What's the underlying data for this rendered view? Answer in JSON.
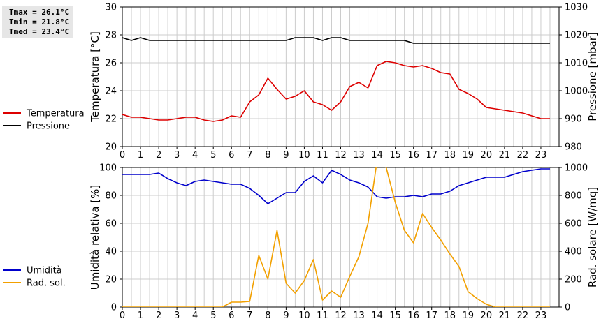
{
  "stats": {
    "tmax": "Tmax = 26.1°C",
    "tmin": "Tmin = 21.8°C",
    "tmed": "Tmed = 23.4°C"
  },
  "colors": {
    "temperature": "#dd0000",
    "pressure": "#000000",
    "humidity": "#0000cc",
    "solar": "#f2a000",
    "grid": "#cccccc"
  },
  "chart_data": [
    {
      "type": "line",
      "title": "",
      "legend_position": "left",
      "grid": true,
      "x": [
        0,
        0.5,
        1,
        1.5,
        2,
        2.5,
        3,
        3.5,
        4,
        4.5,
        5,
        5.5,
        6,
        6.5,
        7,
        7.5,
        8,
        8.5,
        9,
        9.5,
        10,
        10.5,
        11,
        11.5,
        12,
        12.5,
        13,
        13.5,
        14,
        14.5,
        15,
        15.5,
        16,
        16.5,
        17,
        17.5,
        18,
        18.5,
        19,
        19.5,
        20,
        20.5,
        21,
        21.5,
        22,
        22.5,
        23,
        23.5
      ],
      "x_ticks": [
        "0",
        "1",
        "2",
        "3",
        "4",
        "5",
        "6",
        "7",
        "8",
        "9",
        "10",
        "11",
        "12",
        "13",
        "14",
        "15",
        "16",
        "17",
        "18",
        "19",
        "20",
        "21",
        "22",
        "23"
      ],
      "xlim": [
        0,
        24
      ],
      "ylabel_left": "Temperatura [°C]",
      "ylim_left": [
        20,
        30
      ],
      "yticks_left": [
        "20",
        "22",
        "24",
        "26",
        "28",
        "30"
      ],
      "ylabel_right": "Pressione [mbar]",
      "ylim_right": [
        980,
        1030
      ],
      "yticks_right": [
        "980",
        "990",
        "1000",
        "1010",
        "1020",
        "1030"
      ],
      "series": [
        {
          "name": "Temperatura",
          "axis": "left",
          "values": [
            22.3,
            22.1,
            22.1,
            22.0,
            21.9,
            21.9,
            22.0,
            22.1,
            22.1,
            21.9,
            21.8,
            21.9,
            22.2,
            22.1,
            23.2,
            23.7,
            24.9,
            24.1,
            23.4,
            23.6,
            24.0,
            23.2,
            23.0,
            22.6,
            23.2,
            24.3,
            24.6,
            24.2,
            25.8,
            26.1,
            26.0,
            25.8,
            25.7,
            25.8,
            25.6,
            25.3,
            25.2,
            24.1,
            23.8,
            23.4,
            22.8,
            22.7,
            22.6,
            22.5,
            22.4,
            22.2,
            22.0,
            22.0
          ]
        },
        {
          "name": "Pressione",
          "axis": "right",
          "values": [
            1019,
            1018,
            1019,
            1018,
            1018,
            1018,
            1018,
            1018,
            1018,
            1018,
            1018,
            1018,
            1018,
            1018,
            1018,
            1018,
            1018,
            1018,
            1018,
            1019,
            1019,
            1019,
            1018,
            1019,
            1019,
            1018,
            1018,
            1018,
            1018,
            1018,
            1018,
            1018,
            1017,
            1017,
            1017,
            1017,
            1017,
            1017,
            1017,
            1017,
            1017,
            1017,
            1017,
            1017,
            1017,
            1017,
            1017,
            1017
          ]
        }
      ]
    },
    {
      "type": "line",
      "title": "",
      "legend_position": "left",
      "grid": true,
      "x": [
        0,
        0.5,
        1,
        1.5,
        2,
        2.5,
        3,
        3.5,
        4,
        4.5,
        5,
        5.5,
        6,
        6.5,
        7,
        7.5,
        8,
        8.5,
        9,
        9.5,
        10,
        10.5,
        11,
        11.5,
        12,
        12.5,
        13,
        13.5,
        14,
        14.5,
        15,
        15.5,
        16,
        16.5,
        17,
        17.5,
        18,
        18.5,
        19,
        19.5,
        20,
        20.5,
        21,
        21.5,
        22,
        22.5,
        23,
        23.5
      ],
      "x_ticks": [
        "0",
        "1",
        "2",
        "3",
        "4",
        "5",
        "6",
        "7",
        "8",
        "9",
        "10",
        "11",
        "12",
        "13",
        "14",
        "15",
        "16",
        "17",
        "18",
        "19",
        "20",
        "21",
        "22",
        "23"
      ],
      "xlim": [
        0,
        24
      ],
      "ylabel_left": "Umidità relativa [%]",
      "ylim_left": [
        0,
        100
      ],
      "yticks_left": [
        "0",
        "20",
        "40",
        "60",
        "80",
        "100"
      ],
      "ylabel_right": "Rad. solare [W/mq]",
      "ylim_right": [
        0,
        1000
      ],
      "yticks_right": [
        "0",
        "200",
        "400",
        "600",
        "800",
        "1000"
      ],
      "series": [
        {
          "name": "Umidità",
          "axis": "left",
          "values": [
            95,
            95,
            95,
            95,
            96,
            92,
            89,
            87,
            90,
            91,
            90,
            89,
            88,
            88,
            85,
            80,
            74,
            78,
            82,
            82,
            90,
            94,
            89,
            98,
            95,
            91,
            89,
            86,
            79,
            78,
            79,
            79,
            80,
            79,
            81,
            81,
            83,
            87,
            89,
            91,
            93,
            93,
            93,
            95,
            97,
            98,
            99,
            99
          ]
        },
        {
          "name": "Rad. sol.",
          "axis": "right",
          "values": [
            0,
            0,
            0,
            0,
            0,
            0,
            0,
            0,
            0,
            0,
            0,
            0,
            35,
            35,
            40,
            370,
            200,
            550,
            170,
            100,
            190,
            340,
            50,
            115,
            70,
            220,
            360,
            600,
            1050,
            1000,
            750,
            550,
            460,
            670,
            570,
            480,
            380,
            290,
            110,
            60,
            20,
            0,
            0,
            0,
            0,
            0,
            0,
            0
          ]
        }
      ]
    }
  ]
}
